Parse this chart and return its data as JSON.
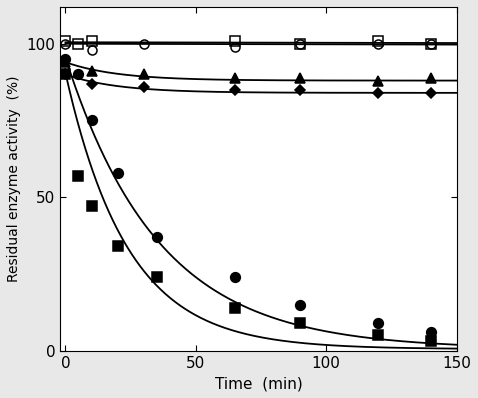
{
  "title": "",
  "xlabel": "Time  (min)",
  "ylabel": "Residual enzyme activity  (%)",
  "xlim": [
    -2,
    150
  ],
  "ylim": [
    0,
    112
  ],
  "yticks": [
    0,
    50,
    100
  ],
  "xticks": [
    0,
    50,
    100,
    150
  ],
  "series": [
    {
      "label": "open_square",
      "marker": "s",
      "fillstyle": "none",
      "markersize": 6.5,
      "x": [
        0,
        5,
        10,
        65,
        90,
        120,
        140
      ],
      "y": [
        101,
        100,
        101,
        101,
        100,
        101,
        100
      ],
      "fit_A": 1.0,
      "fit_B": 0.002,
      "fit_C": 99.5
    },
    {
      "label": "open_circle",
      "marker": "o",
      "fillstyle": "none",
      "markersize": 6.5,
      "x": [
        0,
        10,
        30,
        65,
        90,
        120,
        140
      ],
      "y": [
        100,
        98,
        100,
        99,
        100,
        100,
        100
      ],
      "fit_A": 1.0,
      "fit_B": 0.002,
      "fit_C": 99.0
    },
    {
      "label": "filled_triangle",
      "marker": "^",
      "fillstyle": "full",
      "markersize": 7,
      "x": [
        0,
        10,
        30,
        65,
        90,
        120,
        140
      ],
      "y": [
        94,
        91,
        90,
        89,
        89,
        88,
        89
      ],
      "fit_A": 6.0,
      "fit_B": 0.05,
      "fit_C": 88.0
    },
    {
      "label": "filled_diamond",
      "marker": "D",
      "fillstyle": "full",
      "markersize": 5.5,
      "x": [
        0,
        10,
        30,
        65,
        90,
        120,
        140
      ],
      "y": [
        90,
        87,
        86,
        85,
        85,
        84,
        84
      ],
      "fit_A": 6.0,
      "fit_B": 0.05,
      "fit_C": 84.0
    },
    {
      "label": "filled_circle",
      "marker": "o",
      "fillstyle": "full",
      "markersize": 7,
      "x": [
        0,
        5,
        10,
        20,
        35,
        65,
        90,
        120,
        140
      ],
      "y": [
        95,
        90,
        75,
        58,
        37,
        24,
        15,
        9,
        6
      ],
      "fit_A": 95.0,
      "fit_B": 0.028,
      "fit_C": 0.5
    },
    {
      "label": "filled_square",
      "marker": "s",
      "fillstyle": "full",
      "markersize": 6.5,
      "x": [
        0,
        5,
        10,
        20,
        35,
        65,
        90,
        120,
        140
      ],
      "y": [
        90,
        57,
        47,
        34,
        24,
        14,
        9,
        5,
        3
      ],
      "fit_A": 90.0,
      "fit_B": 0.042,
      "fit_C": 0.5
    }
  ],
  "background_color": "#f0f0f0",
  "linewidth": 1.3,
  "axis_linewidth": 0.8
}
